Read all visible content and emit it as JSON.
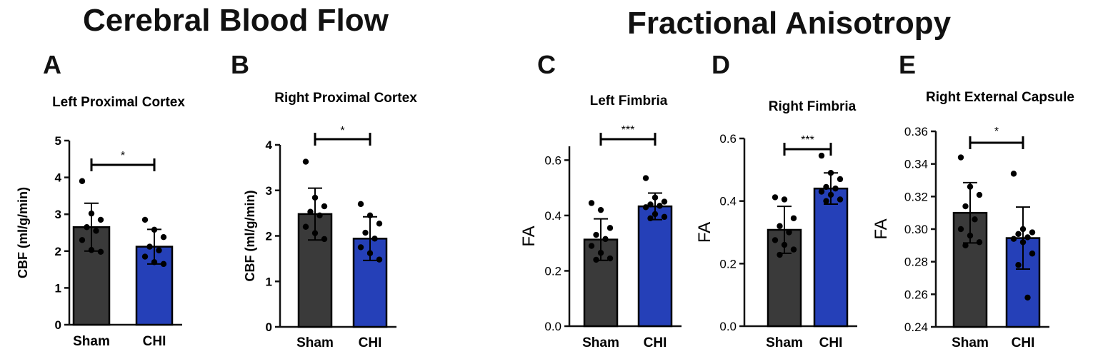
{
  "group_titles": {
    "cbf": "Cerebral Blood Flow",
    "fa": "Fractional Anisotropy"
  },
  "colors": {
    "sham": "#3a3a3a",
    "chi": "#2540b8"
  },
  "chart_data": [
    {
      "id": "A",
      "letter": "A",
      "type": "bar",
      "title": "Left Proximal Cortex",
      "ylabel": "CBF (ml/g/min)",
      "xlabel": "",
      "categories": [
        "Sham",
        "CHI"
      ],
      "values": [
        2.65,
        2.12
      ],
      "errors": [
        0.65,
        0.47
      ],
      "ylim": [
        0,
        5
      ],
      "yticks": [
        0,
        1,
        2,
        3,
        4,
        5
      ],
      "tick_labels": [
        "0",
        "1",
        "2",
        "3",
        "4",
        "5"
      ],
      "points": [
        [
          3.9,
          3.02,
          2.85,
          2.65,
          2.55,
          2.3,
          2.03,
          1.98
        ],
        [
          2.85,
          2.58,
          2.38,
          2.12,
          2.02,
          1.85,
          1.7,
          1.65
        ]
      ],
      "significance": "*"
    },
    {
      "id": "B",
      "letter": "B",
      "type": "bar",
      "title": "Right Proximal Cortex",
      "ylabel": "CBF (ml/g/min)",
      "xlabel": "",
      "categories": [
        "Sham",
        "CHI"
      ],
      "values": [
        2.48,
        1.94
      ],
      "errors": [
        0.57,
        0.48
      ],
      "ylim": [
        0,
        4
      ],
      "yticks": [
        0,
        1,
        2,
        3,
        4
      ],
      "tick_labels": [
        "0",
        "1",
        "2",
        "3",
        "4"
      ],
      "points": [
        [
          3.63,
          2.84,
          2.65,
          2.53,
          2.45,
          2.2,
          2.06,
          1.93
        ],
        [
          2.7,
          2.45,
          2.27,
          2.07,
          1.94,
          1.75,
          1.62,
          1.48
        ]
      ],
      "significance": "*"
    },
    {
      "id": "C",
      "letter": "C",
      "type": "bar",
      "title": "Left Fimbria",
      "ylabel": "FA",
      "xlabel": "",
      "categories": [
        "Sham",
        "CHI"
      ],
      "values": [
        0.313,
        0.433
      ],
      "errors": [
        0.075,
        0.048
      ],
      "ylim": [
        0,
        0.65
      ],
      "yticks": [
        0,
        0.2,
        0.4,
        0.6
      ],
      "tick_labels": [
        "0.0",
        "0.2",
        "0.4",
        "0.6"
      ],
      "points": [
        [
          0.445,
          0.42,
          0.355,
          0.33,
          0.315,
          0.29,
          0.265,
          0.245,
          0.24
        ],
        [
          0.535,
          0.465,
          0.45,
          0.44,
          0.435,
          0.43,
          0.405,
          0.395,
          0.39
        ]
      ],
      "significance": "***"
    },
    {
      "id": "D",
      "letter": "D",
      "type": "bar",
      "title": "Right Fimbria",
      "ylabel": "FA",
      "xlabel": "",
      "categories": [
        "Sham",
        "CHI"
      ],
      "values": [
        0.308,
        0.44
      ],
      "errors": [
        0.075,
        0.05
      ],
      "ylim": [
        0,
        0.6
      ],
      "yticks": [
        0,
        0.2,
        0.4,
        0.6
      ],
      "tick_labels": [
        "0.0",
        "0.2",
        "0.4",
        "0.6"
      ],
      "points": [
        [
          0.412,
          0.405,
          0.345,
          0.32,
          0.3,
          0.275,
          0.26,
          0.245,
          0.228
        ],
        [
          0.545,
          0.49,
          0.47,
          0.445,
          0.44,
          0.43,
          0.42,
          0.405,
          0.4
        ]
      ],
      "significance": "***"
    },
    {
      "id": "E",
      "letter": "E",
      "type": "bar",
      "title": "Right External Capsule",
      "ylabel": "FA",
      "xlabel": "",
      "categories": [
        "Sham",
        "CHI"
      ],
      "values": [
        0.31,
        0.2945
      ],
      "errors": [
        0.0185,
        0.019
      ],
      "ylim": [
        0.24,
        0.36
      ],
      "yticks": [
        0.24,
        0.26,
        0.28,
        0.3,
        0.32,
        0.34,
        0.36
      ],
      "tick_labels": [
        "0.24",
        "0.26",
        "0.28",
        "0.30",
        "0.32",
        "0.34",
        "0.36"
      ],
      "points": [
        [
          0.344,
          0.326,
          0.321,
          0.314,
          0.306,
          0.3,
          0.296,
          0.292,
          0.29
        ],
        [
          0.334,
          0.3,
          0.298,
          0.297,
          0.295,
          0.294,
          0.292,
          0.285,
          0.278,
          0.258
        ]
      ],
      "significance": "*"
    }
  ]
}
